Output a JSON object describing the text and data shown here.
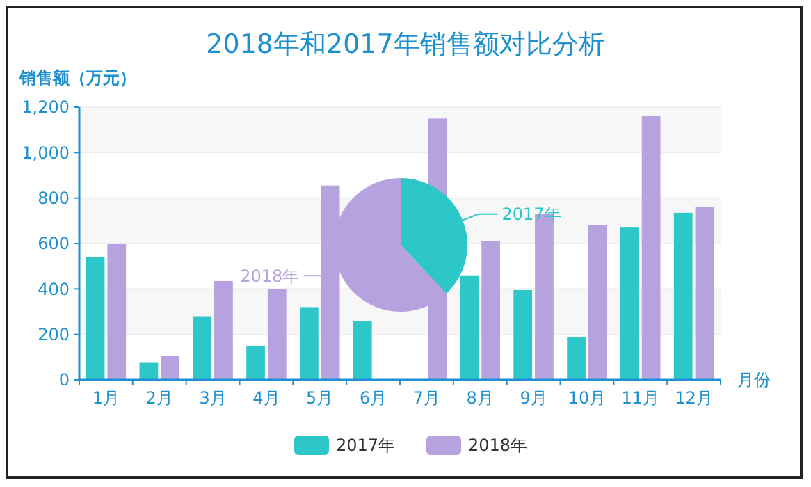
{
  "chart_data": [
    {
      "type": "bar",
      "title": "2018年和2017年销售额对比分析",
      "ylabel": "销售额（万元）",
      "xlabel": "月份",
      "categories": [
        "1月",
        "2月",
        "3月",
        "4月",
        "5月",
        "6月",
        "7月",
        "8月",
        "9月",
        "10月",
        "11月",
        "12月"
      ],
      "series": [
        {
          "name": "2017年",
          "color": "#2ec7c9",
          "values": [
            540,
            75,
            280,
            150,
            320,
            260,
            null,
            460,
            395,
            190,
            670,
            735
          ]
        },
        {
          "name": "2018年",
          "color": "#b6a2de",
          "values": [
            600,
            105,
            435,
            400,
            855,
            null,
            1150,
            610,
            730,
            680,
            1160,
            760
          ]
        }
      ],
      "ylim": [
        0,
        1200
      ],
      "yticks": [
        0,
        {
          "value": 200,
          "label": "200"
        },
        {
          "value": 400,
          "label": "400"
        },
        {
          "value": 600,
          "label": "600"
        },
        {
          "value": 800,
          "label": "800"
        },
        {
          "value": 1000,
          "label": "1,000"
        },
        {
          "value": 1200,
          "label": "1,200"
        }
      ],
      "grid": "y",
      "legend": "bottom"
    },
    {
      "type": "pie",
      "categories": [
        "2017年",
        "2018年"
      ],
      "values": [
        38,
        62
      ],
      "colors": [
        "#2ec7c9",
        "#b6a2de"
      ]
    }
  ]
}
